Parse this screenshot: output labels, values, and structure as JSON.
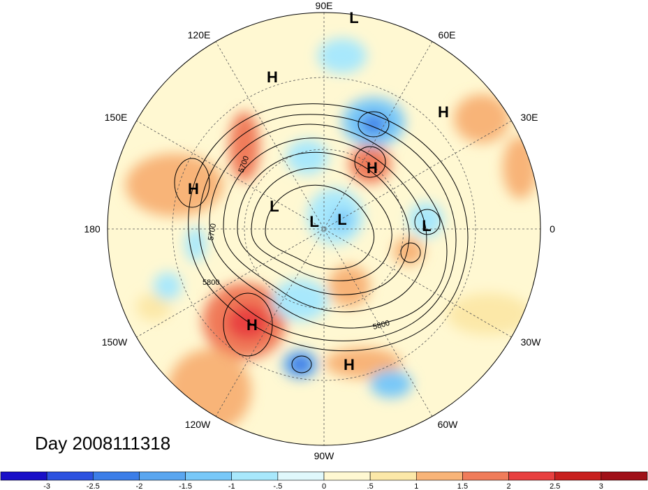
{
  "title": "Day 2008111318",
  "longitude_labels": [
    "90E",
    "60E",
    "30E",
    "0",
    "30W",
    "60W",
    "90W",
    "120W",
    "150W",
    "180",
    "150E",
    "120E"
  ],
  "contour_labels": [
    "5700",
    "5700",
    "5800",
    "5800"
  ],
  "pressure_centers": [
    {
      "type": "L",
      "label": "L"
    },
    {
      "type": "H",
      "label": "H"
    },
    {
      "type": "H",
      "label": "H"
    },
    {
      "type": "H",
      "label": "H"
    },
    {
      "type": "H",
      "label": "H"
    },
    {
      "type": "L",
      "label": "L"
    },
    {
      "type": "L",
      "label": "L"
    },
    {
      "type": "L",
      "label": "L"
    },
    {
      "type": "L",
      "label": "L"
    },
    {
      "type": "H",
      "label": "H"
    },
    {
      "type": "H",
      "label": "H"
    }
  ],
  "colorbar": {
    "tick_labels": [
      "-3",
      "-2.5",
      "-2",
      "-1.5",
      "-1",
      "-.5",
      "0",
      ".5",
      "1",
      "1.5",
      "2",
      "2.5",
      "3"
    ],
    "colors": [
      "#1a10c8",
      "#2d52e0",
      "#3c7ee8",
      "#5aa6f0",
      "#78c8f8",
      "#a8e8fc",
      "#e0f8fc",
      "#fff8d2",
      "#fce8a8",
      "#f8b478",
      "#f07c5a",
      "#e84040",
      "#c8201e",
      "#a01018"
    ]
  },
  "icons": {
    "map": "polar-stereographic-map"
  }
}
